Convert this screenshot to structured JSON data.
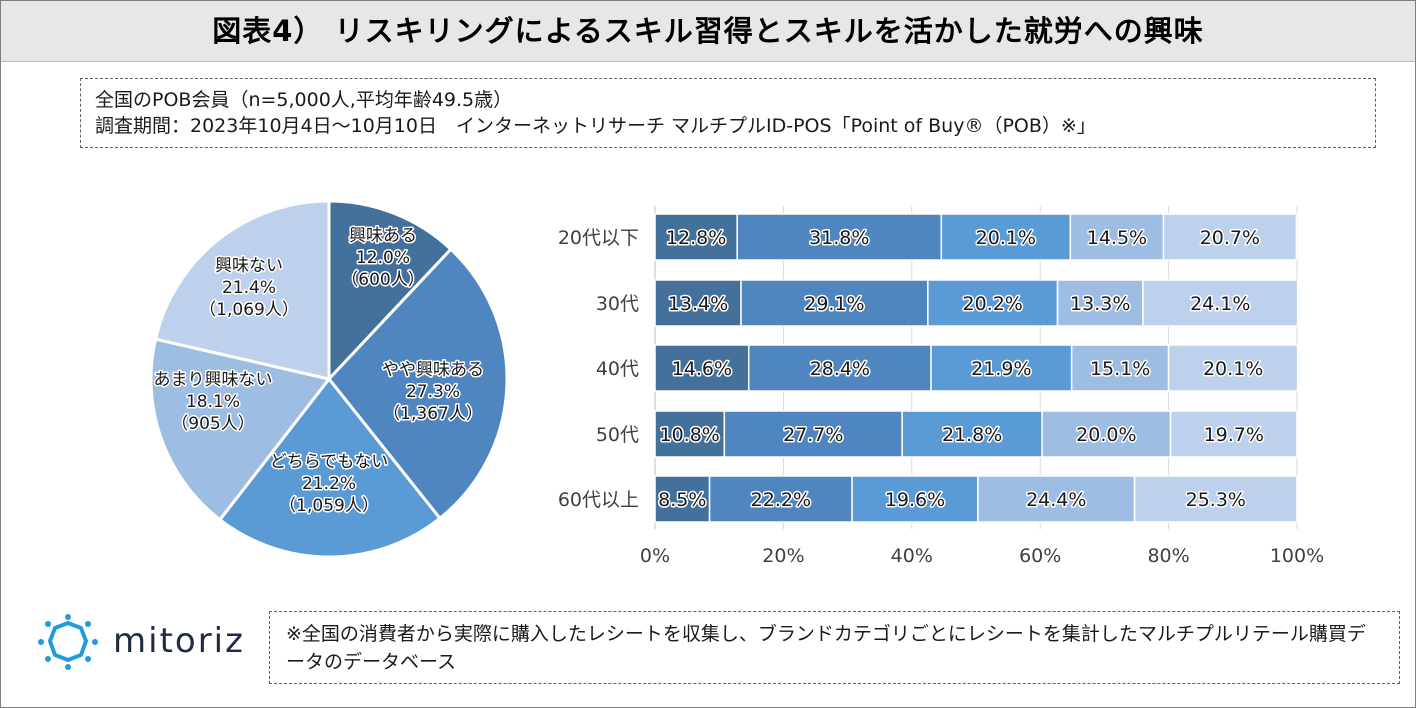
{
  "header": {
    "title": "図表4） リスキリングによるスキル習得とスキルを活かした就労への興味"
  },
  "info": {
    "line1": "全国のPOB会員（n=5,000人,平均年齢49.5歳）",
    "line2": "調査期間：2023年10月4日～10月10日　インターネットリサーチ マルチプルID-POS「Point of Buy®（POB）※」"
  },
  "footer": {
    "brand": "mitoriz",
    "note": "※全国の消費者から実際に購入したレシートを収集し、ブランドカテゴリごとにレシートを集計したマルチプルリテール購買データのデータベース"
  },
  "chart_data": [
    {
      "type": "pie",
      "labels": [
        "興味ある",
        "やや興味ある",
        "どちらでもない",
        "あまり興味ない",
        "興味ない"
      ],
      "values": [
        12.0,
        27.3,
        21.2,
        18.1,
        21.4
      ],
      "value_labels": [
        "12.0%",
        "27.3%",
        "21.2%",
        "18.1%",
        "21.4%"
      ],
      "counts": [
        "（600人）",
        "（1,367人）",
        "（1,059人）",
        "（905人）",
        "（1,069人）"
      ],
      "colors": [
        "#44709c",
        "#4f86bf",
        "#5b9bd5",
        "#9dbde3",
        "#bdd1ec"
      ]
    },
    {
      "type": "bar",
      "orientation": "horizontal",
      "stacked": true,
      "categories": [
        "20代以下",
        "30代",
        "40代",
        "50代",
        "60代以上"
      ],
      "series": [
        {
          "name": "興味ある",
          "values": [
            12.8,
            13.4,
            14.6,
            10.8,
            8.5
          ],
          "labels": [
            "12.8%",
            "13.4%",
            "14.6%",
            "10.8%",
            "8.5%"
          ],
          "color": "#44709c"
        },
        {
          "name": "やや興味ある",
          "values": [
            31.8,
            29.1,
            28.4,
            27.7,
            22.2
          ],
          "labels": [
            "31.8%",
            "29.1%",
            "28.4%",
            "27.7%",
            "22.2%"
          ],
          "color": "#4f86bf"
        },
        {
          "name": "どちらでもない",
          "values": [
            20.1,
            20.2,
            21.9,
            21.8,
            19.6
          ],
          "labels": [
            "20.1%",
            "20.2%",
            "21.9%",
            "21.8%",
            "19.6%"
          ],
          "color": "#5b9bd5"
        },
        {
          "name": "あまり興味ない",
          "values": [
            14.5,
            13.3,
            15.1,
            20.0,
            24.4
          ],
          "labels": [
            "14.5%",
            "13.3%",
            "15.1%",
            "20.0%",
            "24.4%"
          ],
          "color": "#9dbde3"
        },
        {
          "name": "興味ない",
          "values": [
            20.7,
            24.1,
            20.1,
            19.7,
            25.3
          ],
          "labels": [
            "20.7%",
            "24.1%",
            "20.1%",
            "19.7%",
            "25.3%"
          ],
          "color": "#bdd1ec"
        }
      ],
      "xlim": [
        0,
        100
      ],
      "xticks": [
        "0%",
        "20%",
        "40%",
        "60%",
        "80%",
        "100%"
      ],
      "grid": true
    }
  ]
}
